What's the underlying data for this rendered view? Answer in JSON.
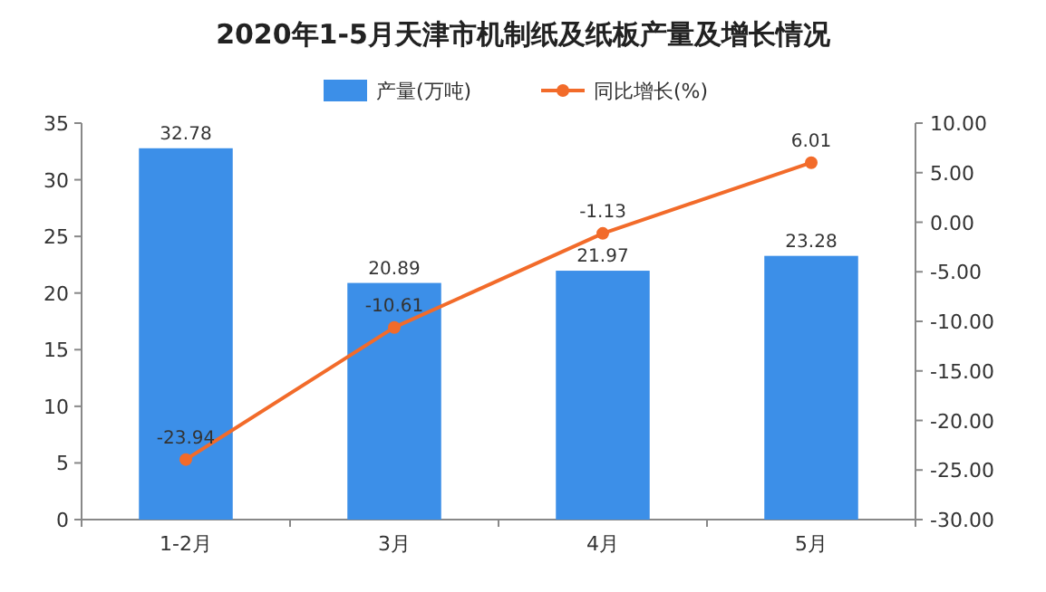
{
  "chart_data": {
    "type": "bar",
    "title": "2020年1-5月天津市机制纸及纸板产量及增长情况",
    "categories": [
      "1-2月",
      "3月",
      "4月",
      "5月"
    ],
    "series": [
      {
        "name": "产量(万吨)",
        "color": "#3c8fe8",
        "values": [
          32.78,
          20.89,
          21.97,
          23.28
        ]
      },
      {
        "name": "同比增长(%)",
        "type": "line",
        "axis": "y2",
        "color": "#f26b2a",
        "values": [
          -23.94,
          -10.61,
          -1.13,
          6.01
        ]
      }
    ],
    "ylim": [
      0,
      35
    ],
    "yticks": [
      0,
      5,
      10,
      15,
      20,
      25,
      30,
      35
    ],
    "y2lim": [
      -30,
      10
    ],
    "y2ticks": [
      {
        "value": -30,
        "label": "-30.00"
      },
      {
        "value": -25,
        "label": "-25.00"
      },
      {
        "value": -20,
        "label": "-20.00"
      },
      {
        "value": -15,
        "label": "-15.00"
      },
      {
        "value": -10,
        "label": "-10.00"
      },
      {
        "value": -5,
        "label": "-5.00"
      },
      {
        "value": 0,
        "label": "0.00"
      },
      {
        "value": 5,
        "label": "5.00"
      },
      {
        "value": 10,
        "label": "10.00"
      }
    ],
    "data_labels": true,
    "legend": "top",
    "marker": "circle",
    "grid": false
  }
}
